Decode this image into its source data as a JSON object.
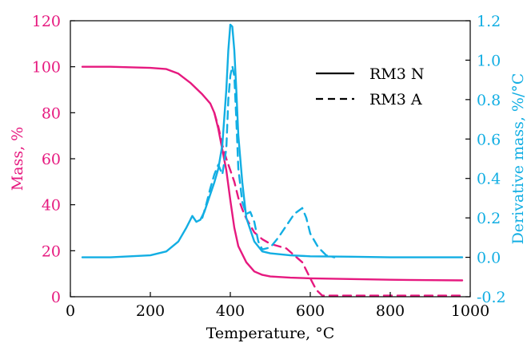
{
  "chart_data": {
    "type": "line",
    "xlabel": "Temperature, °C",
    "ylabel_left": "Mass, %",
    "ylabel_right": "Derivative mass, %/°C",
    "xlim": [
      0,
      1000
    ],
    "ylim_left": [
      0,
      120
    ],
    "ylim_right": [
      -0.2,
      1.2
    ],
    "x_ticks": [
      "0",
      "200",
      "400",
      "600",
      "800",
      "1000"
    ],
    "y_left_ticks": [
      "0",
      "20",
      "40",
      "60",
      "80",
      "100",
      "120"
    ],
    "y_right_ticks": [
      "-0.2",
      "0.0",
      "0.2",
      "0.4",
      "0.6",
      "0.8",
      "1.0",
      "1.2"
    ],
    "grid": false,
    "legend": {
      "placement": "top-right",
      "entries": [
        {
          "label": "RM3 N",
          "style": "solid"
        },
        {
          "label": "RM3 A",
          "style": "dashed"
        }
      ]
    },
    "colors": {
      "mass": "#e6197f",
      "derivative": "#12aee3",
      "axes": "#000000"
    },
    "series": [
      {
        "name": "RM3 N",
        "axis": "left",
        "style": "solid",
        "color": "#e6197f",
        "x": [
          30,
          100,
          200,
          240,
          270,
          300,
          330,
          350,
          360,
          370,
          380,
          390,
          400,
          410,
          420,
          440,
          460,
          480,
          500,
          550,
          600,
          700,
          800,
          900,
          980
        ],
        "y": [
          100,
          100,
          99.5,
          99,
          97,
          93,
          88,
          84,
          80,
          73,
          64,
          55,
          42,
          30,
          22,
          15,
          11,
          9.5,
          8.8,
          8.3,
          8,
          7.7,
          7.4,
          7.2,
          7.1
        ]
      },
      {
        "name": "RM3 A",
        "axis": "left",
        "style": "dashed",
        "color": "#e6197f",
        "x": [
          360,
          370,
          380,
          390,
          400,
          410,
          420,
          430,
          440,
          460,
          480,
          500,
          540,
          580,
          600,
          615,
          630,
          700,
          800,
          900,
          980
        ],
        "y": [
          80,
          74,
          66,
          60,
          55,
          50,
          43,
          38,
          34,
          28,
          25,
          23,
          21,
          15,
          8,
          3,
          0.5,
          0.5,
          0.5,
          0.5,
          0.5
        ]
      },
      {
        "name": "RM3 N",
        "axis": "right",
        "style": "solid",
        "color": "#12aee3",
        "x": [
          30,
          100,
          200,
          240,
          270,
          290,
          305,
          315,
          325,
          335,
          350,
          360,
          370,
          380,
          390,
          395,
          400,
          405,
          410,
          415,
          420,
          430,
          440,
          460,
          480,
          500,
          550,
          600,
          700,
          800,
          900,
          980
        ],
        "y": [
          0,
          0,
          0.01,
          0.03,
          0.08,
          0.15,
          0.21,
          0.18,
          0.19,
          0.23,
          0.32,
          0.38,
          0.45,
          0.57,
          0.85,
          1.05,
          1.18,
          1.17,
          1.05,
          0.85,
          0.62,
          0.38,
          0.2,
          0.08,
          0.03,
          0.02,
          0.01,
          0.005,
          0.003,
          0,
          0,
          0
        ]
      },
      {
        "name": "RM3 A",
        "axis": "right",
        "style": "dashed",
        "color": "#12aee3",
        "x": [
          330,
          340,
          350,
          360,
          370,
          380,
          390,
          395,
          400,
          405,
          410,
          415,
          420,
          430,
          440,
          450,
          460,
          470,
          480,
          500,
          520,
          540,
          560,
          580,
          590,
          600,
          620,
          640,
          660
        ],
        "y": [
          0.2,
          0.27,
          0.35,
          0.42,
          0.47,
          0.42,
          0.55,
          0.8,
          0.92,
          0.97,
          0.92,
          0.7,
          0.45,
          0.28,
          0.22,
          0.23,
          0.18,
          0.08,
          0.04,
          0.05,
          0.1,
          0.16,
          0.22,
          0.25,
          0.2,
          0.12,
          0.05,
          0.01,
          0
        ]
      }
    ]
  }
}
